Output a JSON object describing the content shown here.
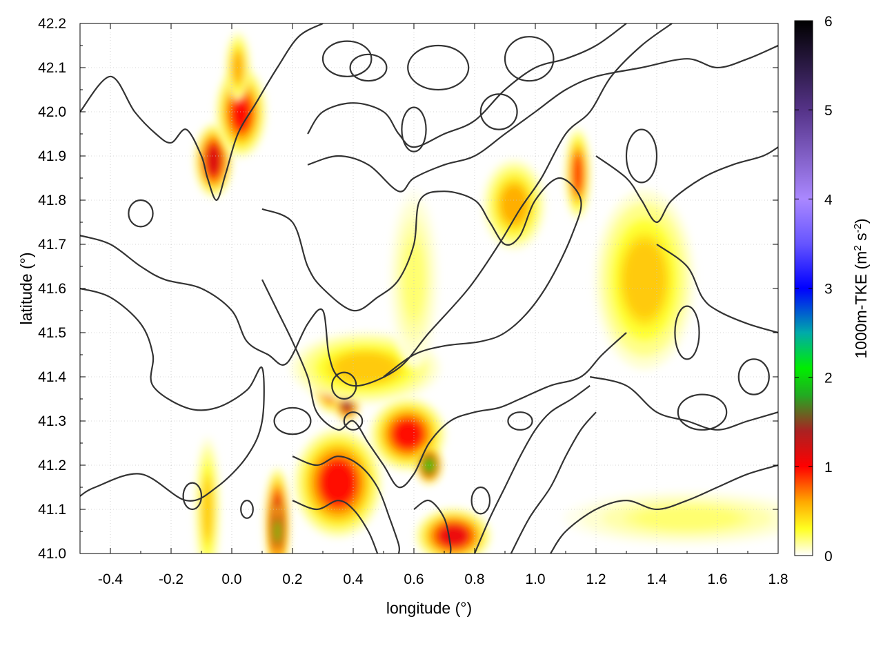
{
  "chart_data": {
    "type": "heatmap",
    "title": "",
    "xlabel": "longitude (°)",
    "ylabel": "latitude (°)",
    "xlim": [
      -0.5,
      1.8
    ],
    "ylim": [
      41.0,
      42.2
    ],
    "x_ticks": [
      -0.4,
      -0.2,
      0.0,
      0.2,
      0.4,
      0.6,
      0.8,
      1.0,
      1.2,
      1.4,
      1.6,
      1.8
    ],
    "x_tick_labels": [
      "-0.4",
      "-0.2",
      "0.0",
      "0.2",
      "0.4",
      "0.6",
      "0.8",
      "1.0",
      "1.2",
      "1.4",
      "1.6",
      "1.8"
    ],
    "y_ticks": [
      41.0,
      41.1,
      41.2,
      41.3,
      41.4,
      41.5,
      41.6,
      41.7,
      41.8,
      41.9,
      42.0,
      42.1,
      42.2
    ],
    "y_tick_labels": [
      "41.0",
      "41.1",
      "41.2",
      "41.3",
      "41.4",
      "41.5",
      "41.6",
      "41.7",
      "41.8",
      "41.9",
      "42.0",
      "42.1",
      "42.2"
    ],
    "grid": true,
    "colorbar": {
      "label_main": "1000m-TKE (m",
      "label_sup1": "2",
      "label_mid": " s",
      "label_sup2": "-2",
      "label_end": ")",
      "range": [
        0,
        6
      ],
      "ticks": [
        0,
        1,
        2,
        3,
        4,
        5,
        6
      ],
      "tick_labels": [
        "0",
        "1",
        "2",
        "3",
        "4",
        "5",
        "6"
      ],
      "colormap": [
        {
          "v": 0.0,
          "color": "#ffffff"
        },
        {
          "v": 0.3,
          "color": "#ffff22"
        },
        {
          "v": 0.6,
          "color": "#ffaa00"
        },
        {
          "v": 1.0,
          "color": "#ff0000"
        },
        {
          "v": 1.4,
          "color": "#aa2222"
        },
        {
          "v": 1.8,
          "color": "#22aa22"
        },
        {
          "v": 2.1,
          "color": "#00ee00"
        },
        {
          "v": 2.5,
          "color": "#00aaaa"
        },
        {
          "v": 3.0,
          "color": "#0000ff"
        },
        {
          "v": 3.5,
          "color": "#6655ff"
        },
        {
          "v": 4.0,
          "color": "#aa88ff"
        },
        {
          "v": 5.0,
          "color": "#553388"
        },
        {
          "v": 6.0,
          "color": "#000000"
        }
      ]
    },
    "tke_hotspots": [
      {
        "lon": -0.06,
        "lat": 41.89,
        "lon_spread": 0.03,
        "lat_spread": 0.04,
        "peak": 1.2
      },
      {
        "lon": 0.03,
        "lat": 42.0,
        "lon_spread": 0.04,
        "lat_spread": 0.05,
        "peak": 1.0
      },
      {
        "lon": 0.02,
        "lat": 42.1,
        "lon_spread": 0.02,
        "lat_spread": 0.04,
        "peak": 0.6
      },
      {
        "lon": 0.33,
        "lat": 41.38,
        "lon_spread": 0.03,
        "lat_spread": 0.03,
        "peak": 1.2
      },
      {
        "lon": 0.38,
        "lat": 41.34,
        "lon_spread": 0.02,
        "lat_spread": 0.02,
        "peak": 1.5
      },
      {
        "lon": 0.44,
        "lat": 41.42,
        "lon_spread": 0.12,
        "lat_spread": 0.04,
        "peak": 0.5
      },
      {
        "lon": 0.58,
        "lat": 41.27,
        "lon_spread": 0.06,
        "lat_spread": 0.04,
        "peak": 1.0
      },
      {
        "lon": 0.35,
        "lat": 41.16,
        "lon_spread": 0.07,
        "lat_spread": 0.06,
        "peak": 1.0
      },
      {
        "lon": 0.15,
        "lat": 41.07,
        "lon_spread": 0.02,
        "lat_spread": 0.06,
        "peak": 1.3
      },
      {
        "lon": 0.15,
        "lat": 41.05,
        "lon_spread": 0.01,
        "lat_spread": 0.03,
        "peak": 2.0
      },
      {
        "lon": 0.65,
        "lat": 41.2,
        "lon_spread": 0.02,
        "lat_spread": 0.02,
        "peak": 2.0
      },
      {
        "lon": 0.73,
        "lat": 41.04,
        "lon_spread": 0.06,
        "lat_spread": 0.03,
        "peak": 1.1
      },
      {
        "lon": 0.93,
        "lat": 41.79,
        "lon_spread": 0.05,
        "lat_spread": 0.05,
        "peak": 0.6
      },
      {
        "lon": 1.14,
        "lat": 41.86,
        "lon_spread": 0.02,
        "lat_spread": 0.05,
        "peak": 0.9
      },
      {
        "lon": 1.36,
        "lat": 41.62,
        "lon_spread": 0.08,
        "lat_spread": 0.1,
        "peak": 0.5
      },
      {
        "lon": 0.6,
        "lat": 41.62,
        "lon_spread": 0.04,
        "lat_spread": 0.1,
        "peak": 0.2
      },
      {
        "lon": -0.08,
        "lat": 41.1,
        "lon_spread": 0.02,
        "lat_spread": 0.08,
        "peak": 0.5
      },
      {
        "lon": 1.5,
        "lat": 41.08,
        "lon_spread": 0.2,
        "lat_spread": 0.03,
        "peak": 0.2
      }
    ],
    "contour_paths_lonlat": [
      [
        [
          -0.5,
          42.0
        ],
        [
          -0.4,
          42.08
        ],
        [
          -0.32,
          42.0
        ],
        [
          -0.25,
          41.95
        ],
        [
          -0.2,
          41.93
        ],
        [
          -0.15,
          41.96
        ],
        [
          -0.1,
          41.9
        ],
        [
          -0.08,
          41.85
        ],
        [
          -0.05,
          41.8
        ],
        [
          -0.02,
          41.86
        ],
        [
          0.02,
          41.95
        ],
        [
          0.08,
          42.02
        ],
        [
          0.15,
          42.1
        ],
        [
          0.22,
          42.17
        ],
        [
          0.3,
          42.2
        ]
      ],
      [
        [
          -0.5,
          41.6
        ],
        [
          -0.4,
          41.58
        ],
        [
          -0.3,
          41.52
        ],
        [
          -0.26,
          41.45
        ],
        [
          -0.26,
          41.38
        ],
        [
          -0.15,
          41.33
        ],
        [
          -0.05,
          41.33
        ],
        [
          0.05,
          41.37
        ],
        [
          0.1,
          41.42
        ],
        [
          0.1,
          41.3
        ],
        [
          0.05,
          41.22
        ],
        [
          -0.05,
          41.15
        ],
        [
          -0.15,
          41.12
        ],
        [
          -0.3,
          41.18
        ],
        [
          -0.45,
          41.15
        ],
        [
          -0.5,
          41.13
        ]
      ],
      [
        [
          -0.5,
          41.72
        ],
        [
          -0.4,
          41.7
        ],
        [
          -0.3,
          41.65
        ],
        [
          -0.22,
          41.62
        ],
        [
          -0.1,
          41.6
        ],
        [
          0.0,
          41.55
        ],
        [
          0.05,
          41.48
        ],
        [
          0.12,
          41.45
        ],
        [
          0.18,
          41.43
        ],
        [
          0.25,
          41.52
        ],
        [
          0.3,
          41.55
        ],
        [
          0.32,
          41.45
        ],
        [
          0.35,
          41.4
        ],
        [
          0.42,
          41.38
        ],
        [
          0.55,
          41.42
        ],
        [
          0.65,
          41.5
        ],
        [
          0.78,
          41.6
        ],
        [
          0.88,
          41.7
        ],
        [
          0.95,
          41.78
        ],
        [
          1.02,
          41.85
        ],
        [
          1.1,
          41.95
        ],
        [
          1.18,
          42.0
        ],
        [
          1.25,
          42.08
        ],
        [
          1.35,
          42.15
        ],
        [
          1.45,
          42.2
        ]
      ],
      [
        [
          0.1,
          41.78
        ],
        [
          0.2,
          41.75
        ],
        [
          0.25,
          41.65
        ],
        [
          0.3,
          41.6
        ],
        [
          0.4,
          41.55
        ],
        [
          0.48,
          41.58
        ],
        [
          0.55,
          41.62
        ],
        [
          0.6,
          41.7
        ],
        [
          0.62,
          41.8
        ],
        [
          0.7,
          41.82
        ],
        [
          0.8,
          41.8
        ],
        [
          0.85,
          41.75
        ],
        [
          0.9,
          41.7
        ],
        [
          0.95,
          41.72
        ],
        [
          1.0,
          41.8
        ],
        [
          1.08,
          41.85
        ],
        [
          1.15,
          41.8
        ],
        [
          1.12,
          41.72
        ],
        [
          1.05,
          41.62
        ],
        [
          0.98,
          41.55
        ],
        [
          0.9,
          41.5
        ],
        [
          0.82,
          41.48
        ],
        [
          0.7,
          41.47
        ],
        [
          0.6,
          41.45
        ],
        [
          0.5,
          41.4
        ]
      ],
      [
        [
          0.1,
          41.62
        ],
        [
          0.15,
          41.55
        ],
        [
          0.2,
          41.48
        ],
        [
          0.25,
          41.4
        ],
        [
          0.28,
          41.32
        ],
        [
          0.35,
          41.28
        ],
        [
          0.4,
          41.3
        ],
        [
          0.45,
          41.25
        ],
        [
          0.5,
          41.2
        ],
        [
          0.55,
          41.15
        ],
        [
          0.6,
          41.18
        ],
        [
          0.65,
          41.25
        ],
        [
          0.72,
          41.3
        ],
        [
          0.8,
          41.32
        ],
        [
          0.88,
          41.33
        ],
        [
          0.95,
          41.35
        ],
        [
          1.05,
          41.38
        ],
        [
          1.15,
          41.4
        ],
        [
          1.22,
          41.45
        ],
        [
          1.3,
          41.5
        ]
      ],
      [
        [
          0.2,
          41.22
        ],
        [
          0.28,
          41.2
        ],
        [
          0.35,
          41.22
        ],
        [
          0.42,
          41.2
        ],
        [
          0.48,
          41.15
        ],
        [
          0.52,
          41.08
        ],
        [
          0.55,
          41.02
        ],
        [
          0.55,
          41.0
        ]
      ],
      [
        [
          0.2,
          41.12
        ],
        [
          0.28,
          41.1
        ],
        [
          0.35,
          41.12
        ],
        [
          0.4,
          41.1
        ],
        [
          0.45,
          41.05
        ],
        [
          0.48,
          41.0
        ]
      ],
      [
        [
          0.6,
          41.1
        ],
        [
          0.65,
          41.12
        ],
        [
          0.7,
          41.08
        ],
        [
          0.72,
          41.02
        ],
        [
          0.72,
          41.0
        ]
      ],
      [
        [
          0.8,
          41.0
        ],
        [
          0.85,
          41.08
        ],
        [
          0.9,
          41.15
        ],
        [
          0.95,
          41.22
        ],
        [
          1.0,
          41.28
        ],
        [
          1.05,
          41.32
        ],
        [
          1.12,
          41.35
        ],
        [
          1.18,
          41.38
        ]
      ],
      [
        [
          0.92,
          41.0
        ],
        [
          0.98,
          41.08
        ],
        [
          1.05,
          41.15
        ],
        [
          1.1,
          41.22
        ],
        [
          1.15,
          41.28
        ],
        [
          1.2,
          41.32
        ]
      ],
      [
        [
          1.05,
          41.0
        ],
        [
          1.1,
          41.05
        ],
        [
          1.2,
          41.1
        ],
        [
          1.3,
          41.12
        ],
        [
          1.4,
          41.1
        ],
        [
          1.5,
          41.12
        ],
        [
          1.6,
          41.15
        ],
        [
          1.7,
          41.18
        ],
        [
          1.8,
          41.2
        ]
      ],
      [
        [
          1.18,
          41.4
        ],
        [
          1.3,
          41.38
        ],
        [
          1.4,
          41.32
        ],
        [
          1.5,
          41.3
        ],
        [
          1.6,
          41.28
        ],
        [
          1.7,
          41.3
        ],
        [
          1.8,
          41.32
        ]
      ],
      [
        [
          1.4,
          41.7
        ],
        [
          1.5,
          41.65
        ],
        [
          1.55,
          41.58
        ],
        [
          1.6,
          41.55
        ],
        [
          1.7,
          41.52
        ],
        [
          1.8,
          41.5
        ]
      ],
      [
        [
          0.25,
          41.95
        ],
        [
          0.3,
          42.0
        ],
        [
          0.4,
          42.02
        ],
        [
          0.5,
          42.0
        ],
        [
          0.55,
          41.95
        ],
        [
          0.6,
          41.92
        ],
        [
          0.7,
          41.95
        ],
        [
          0.8,
          41.98
        ],
        [
          0.9,
          42.05
        ],
        [
          1.0,
          42.1
        ],
        [
          1.1,
          42.12
        ],
        [
          1.2,
          42.15
        ],
        [
          1.3,
          42.2
        ]
      ],
      [
        [
          0.25,
          41.88
        ],
        [
          0.35,
          41.9
        ],
        [
          0.45,
          41.88
        ],
        [
          0.55,
          41.82
        ],
        [
          0.6,
          41.85
        ],
        [
          0.7,
          41.88
        ],
        [
          0.8,
          41.9
        ],
        [
          0.9,
          41.95
        ],
        [
          1.0,
          42.0
        ],
        [
          1.1,
          42.05
        ],
        [
          1.2,
          42.08
        ],
        [
          1.35,
          42.1
        ],
        [
          1.5,
          42.12
        ],
        [
          1.6,
          42.1
        ],
        [
          1.7,
          42.12
        ],
        [
          1.8,
          42.15
        ]
      ],
      [
        [
          1.2,
          41.9
        ],
        [
          1.3,
          41.85
        ],
        [
          1.35,
          41.8
        ],
        [
          1.4,
          41.75
        ],
        [
          1.45,
          41.8
        ],
        [
          1.55,
          41.85
        ],
        [
          1.65,
          41.88
        ],
        [
          1.75,
          41.9
        ],
        [
          1.8,
          41.92
        ]
      ]
    ],
    "contour_loops_lonlat": [
      {
        "lon": 0.38,
        "lat": 42.12,
        "rlon": 0.08,
        "rlat": 0.04
      },
      {
        "lon": 0.68,
        "lat": 42.1,
        "rlon": 0.1,
        "rlat": 0.05
      },
      {
        "lon": 0.98,
        "lat": 42.12,
        "rlon": 0.08,
        "rlat": 0.05
      },
      {
        "lon": 0.45,
        "lat": 42.1,
        "rlon": 0.06,
        "rlat": 0.03
      },
      {
        "lon": 0.88,
        "lat": 42.0,
        "rlon": 0.06,
        "rlat": 0.04
      },
      {
        "lon": 0.37,
        "lat": 41.38,
        "rlon": 0.04,
        "rlat": 0.03
      },
      {
        "lon": 0.4,
        "lat": 41.3,
        "rlon": 0.03,
        "rlat": 0.02
      },
      {
        "lon": 0.2,
        "lat": 41.3,
        "rlon": 0.06,
        "rlat": 0.03
      },
      {
        "lon": 0.95,
        "lat": 41.3,
        "rlon": 0.04,
        "rlat": 0.02
      },
      {
        "lon": 0.82,
        "lat": 41.12,
        "rlon": 0.03,
        "rlat": 0.03
      },
      {
        "lon": -0.13,
        "lat": 41.13,
        "rlon": 0.03,
        "rlat": 0.03
      },
      {
        "lon": 0.05,
        "lat": 41.1,
        "rlon": 0.02,
        "rlat": 0.02
      },
      {
        "lon": 0.6,
        "lat": 41.96,
        "rlon": 0.04,
        "rlat": 0.05
      },
      {
        "lon": 1.35,
        "lat": 41.9,
        "rlon": 0.05,
        "rlat": 0.06
      },
      {
        "lon": 1.5,
        "lat": 41.5,
        "rlon": 0.04,
        "rlat": 0.06
      },
      {
        "lon": 1.55,
        "lat": 41.32,
        "rlon": 0.08,
        "rlat": 0.04
      },
      {
        "lon": 1.72,
        "lat": 41.4,
        "rlon": 0.05,
        "rlat": 0.04
      },
      {
        "lon": -0.3,
        "lat": 41.77,
        "rlon": 0.04,
        "rlat": 0.03
      }
    ]
  }
}
